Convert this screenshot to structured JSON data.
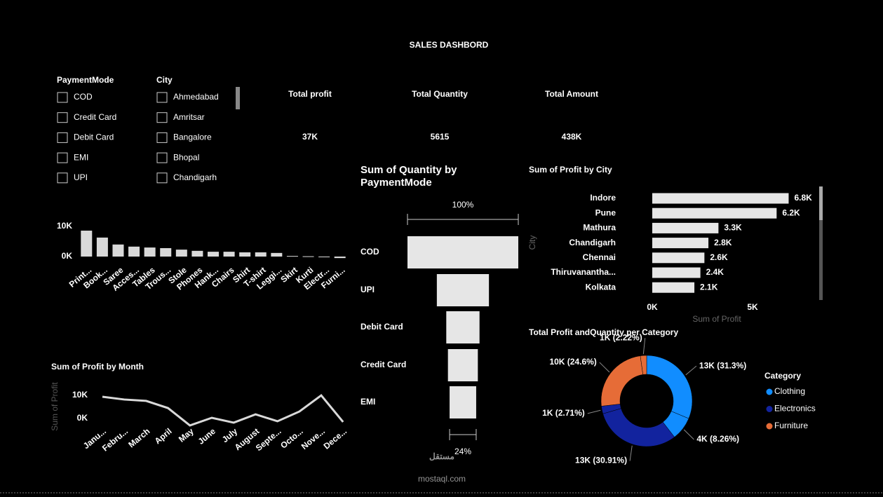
{
  "title": "SALES DASHBORD",
  "slicers": [
    {
      "label": "PaymentMode",
      "items": [
        "COD",
        "Credit Card",
        "Debit Card",
        "EMI",
        "UPI"
      ]
    },
    {
      "label": "City",
      "items": [
        "Ahmedabad",
        "Amritsar",
        "Bangalore",
        "Bhopal",
        "Chandigarh"
      ]
    }
  ],
  "kpis": [
    {
      "label": "Total profit",
      "value": "37K"
    },
    {
      "label": "Total Quantity",
      "value": "5615"
    },
    {
      "label": "Total Amount",
      "value": "438K"
    }
  ],
  "watermark": {
    "logo": "مستقل",
    "site": "mostaql.com"
  },
  "chart_data": [
    {
      "type": "bar",
      "color": "#d9d9d9",
      "categories": [
        "Print...",
        "Book...",
        "Saree",
        "Acces...",
        "Tables",
        "Trous...",
        "Stole",
        "Phones",
        "Hank...",
        "Chairs",
        "Shirt",
        "T-shirt",
        "Leggi...",
        "Skirt",
        "Kurti",
        "Electr...",
        "Furni..."
      ],
      "values": [
        8600,
        6300,
        4000,
        3300,
        3000,
        2800,
        2300,
        1900,
        1600,
        1600,
        1400,
        1400,
        1200,
        200,
        100,
        -200,
        -500
      ],
      "ylim": [
        -1000,
        11000
      ],
      "yticks": [
        {
          "value": 0,
          "label": "0K"
        },
        {
          "value": 10000,
          "label": "10K"
        }
      ]
    },
    {
      "type": "funnel",
      "title": "Sum of Quantity by PaymentMode",
      "color": "#e6e6e6",
      "categories": [
        "COD",
        "UPI",
        "Debit Card",
        "Credit Card",
        "EMI"
      ],
      "values": [
        2463,
        1158,
        739,
        665,
        591
      ],
      "top_label": "100%",
      "bottom_label": "24%"
    },
    {
      "type": "hbar",
      "title": "Sum of Profit by City",
      "color": "#e6e6e6",
      "xlabel": "Sum of Profit",
      "ylabel": "City",
      "categories": [
        "Indore",
        "Pune",
        "Mathura",
        "Chandigarh",
        "Chennai",
        "Thiruvanantha...",
        "Kolkata"
      ],
      "values": [
        6800,
        6200,
        3300,
        2800,
        2600,
        2400,
        2100
      ],
      "value_labels": [
        "6.8K",
        "6.2K",
        "3.3K",
        "2.8K",
        "2.6K",
        "2.4K",
        "2.1K"
      ],
      "xlim": [
        0,
        8000
      ],
      "xticks": [
        {
          "value": 0,
          "label": "0K"
        },
        {
          "value": 5000,
          "label": "5K"
        }
      ]
    },
    {
      "type": "line",
      "title": "Sum of Profit by Month",
      "color": "#d9d9d9",
      "ylabel": "Sum of Profit",
      "categories": [
        "Janu...",
        "Febru...",
        "March",
        "April",
        "May",
        "June",
        "July",
        "August",
        "Septe...",
        "Octo...",
        "Nove...",
        "Dece..."
      ],
      "values": [
        9400,
        8200,
        7600,
        4500,
        -3000,
        300,
        -1800,
        1800,
        -1200,
        3000,
        10000,
        -1500
      ],
      "ylim": [
        -5000,
        12000
      ],
      "yticks": [
        {
          "value": 0,
          "label": "0K"
        },
        {
          "value": 10000,
          "label": "10K"
        }
      ]
    },
    {
      "type": "donut",
      "title": "Total Profit andQuantity per Category",
      "values": [
        31.3,
        8.26,
        30.91,
        2.71,
        24.6,
        2.22
      ],
      "value_labels": [
        "13K (31.3%)",
        "4K (8.26%)",
        "13K (30.91%)",
        "1K (2.71%)",
        "10K (24.6%)",
        "1K (2.22%)"
      ],
      "colors": [
        "#118dff",
        "#118dff",
        "#12239e",
        "#12239e",
        "#e66c37",
        "#e66c37"
      ],
      "legend_title": "Category",
      "legend": [
        {
          "name": "Clothing",
          "color": "#118dff"
        },
        {
          "name": "Electronics",
          "color": "#12239e"
        },
        {
          "name": "Furniture",
          "color": "#e66c37"
        }
      ]
    }
  ]
}
